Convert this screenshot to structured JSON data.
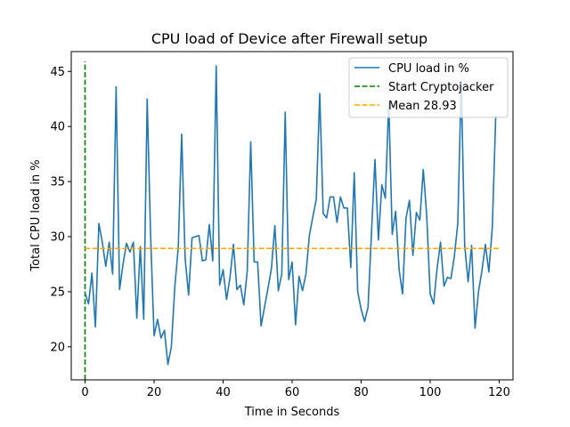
{
  "chart_data": {
    "type": "line",
    "title": "CPU load of Device after Firewall setup",
    "xlabel": "Time in Seconds",
    "ylabel": "Total CPU load in %",
    "xlim": [
      -4,
      124
    ],
    "ylim": [
      17,
      46.8
    ],
    "xticks": [
      0,
      20,
      40,
      60,
      80,
      100,
      120
    ],
    "yticks": [
      20,
      25,
      30,
      35,
      40,
      45
    ],
    "grid": false,
    "legend_position": "top-right",
    "colors": {
      "cpu": "#1f77b4",
      "start": "#008000",
      "mean": "#ffa500"
    },
    "series": [
      {
        "name": "CPU load in %",
        "x": [
          0,
          1,
          2,
          3,
          4,
          5,
          6,
          7,
          8,
          9,
          10,
          11,
          12,
          13,
          14,
          15,
          16,
          17,
          18,
          19,
          20,
          21,
          22,
          23,
          24,
          25,
          26,
          27,
          28,
          29,
          30,
          31,
          32,
          33,
          34,
          35,
          36,
          37,
          38,
          39,
          40,
          41,
          42,
          43,
          44,
          45,
          46,
          47,
          48,
          49,
          50,
          51,
          52,
          53,
          54,
          55,
          56,
          57,
          58,
          59,
          60,
          61,
          62,
          63,
          64,
          65,
          66,
          67,
          68,
          69,
          70,
          71,
          72,
          73,
          74,
          75,
          76,
          77,
          78,
          79,
          80,
          81,
          82,
          83,
          84,
          85,
          86,
          87,
          88,
          89,
          90,
          91,
          92,
          93,
          94,
          95,
          96,
          97,
          98,
          99,
          100,
          101,
          102,
          103,
          104,
          105,
          106,
          107,
          108,
          109,
          110,
          111,
          112,
          113,
          114,
          115,
          116,
          117,
          118,
          119
        ],
        "y": [
          24.9,
          23.9,
          26.7,
          21.8,
          31.2,
          29.5,
          27.3,
          29.5,
          26.6,
          43.6,
          25.2,
          27.5,
          29.4,
          28.6,
          29.5,
          22.6,
          29.1,
          22.5,
          42.5,
          30.0,
          21.0,
          22.5,
          20.8,
          21.5,
          18.4,
          20.0,
          25.4,
          29.0,
          39.3,
          28.0,
          24.7,
          29.9,
          30.0,
          30.1,
          27.8,
          27.9,
          31.1,
          27.8,
          45.5,
          25.6,
          27.0,
          24.3,
          26.3,
          29.3,
          25.2,
          25.6,
          23.8,
          26.9,
          38.6,
          27.7,
          27.7,
          21.9,
          23.6,
          25.3,
          27.1,
          31.0,
          25.1,
          26.6,
          41.3,
          26.1,
          27.7,
          22.0,
          26.4,
          25.1,
          26.6,
          30.1,
          31.8,
          33.4,
          43.0,
          32.1,
          31.7,
          33.6,
          33.6,
          31.3,
          33.6,
          32.6,
          32.6,
          27.2,
          35.8,
          25.0,
          23.4,
          22.3,
          23.6,
          30.4,
          37.0,
          29.7,
          34.7,
          33.5,
          42.2,
          30.2,
          32.3,
          27.0,
          24.8,
          31.7,
          33.3,
          28.3,
          32.2,
          31.5,
          36.1,
          31.9,
          24.8,
          23.9,
          27.1,
          29.5,
          25.5,
          26.3,
          26.2,
          28.2,
          31.2,
          44.1,
          29.2,
          25.9,
          29.2,
          21.7,
          25.0,
          26.9,
          29.3,
          26.8,
          30.8,
          41.0
        ]
      },
      {
        "name": "Start Cryptojacker",
        "x": 0,
        "ystart": 17,
        "yend": 45.9
      },
      {
        "name": "Mean 28.93",
        "y": 28.93,
        "xstart": -0.1,
        "xend": 120.1
      }
    ]
  }
}
